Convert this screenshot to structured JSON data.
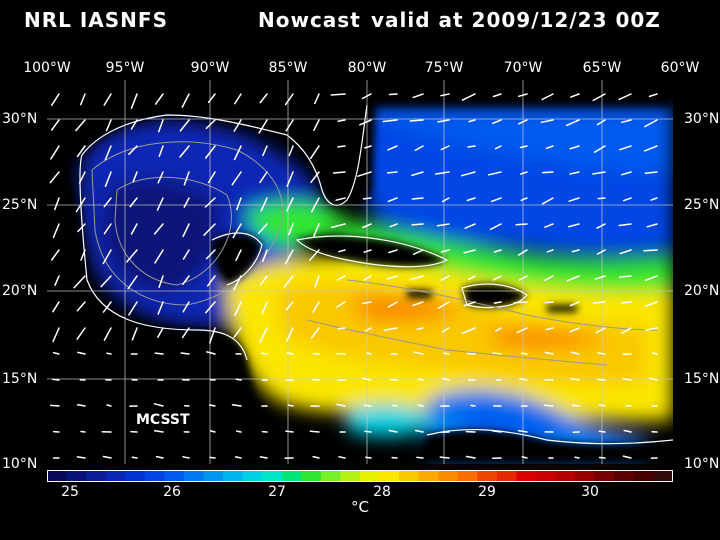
{
  "header": {
    "model": "NRL IASNFS",
    "product": "Nowcast",
    "valid": "valid at 2009/12/23 00Z"
  },
  "lon_labels": [
    "100°W",
    "95°W",
    "90°W",
    "85°W",
    "80°W",
    "75°W",
    "70°W",
    "65°W",
    "60°W"
  ],
  "lat_labels": [
    "30°N",
    "25°N",
    "20°N",
    "15°N",
    "10°N"
  ],
  "overlay_label": "MCSST",
  "colorbar": {
    "ticks": [
      "25",
      "26",
      "27",
      "28",
      "29",
      "30"
    ],
    "unit": "°C",
    "colors": [
      "#0a0a5a",
      "#0a1478",
      "#0a1e96",
      "#0a28b4",
      "#0032d2",
      "#0046e6",
      "#005af0",
      "#0078f0",
      "#0096f0",
      "#00b4f0",
      "#00d2e6",
      "#00e6c8",
      "#00e678",
      "#32e632",
      "#78f028",
      "#b4f014",
      "#e6f000",
      "#fae600",
      "#fac800",
      "#faaa00",
      "#fa8c00",
      "#fa6e00",
      "#f04600",
      "#e62800",
      "#dc0000",
      "#c80000",
      "#b40000",
      "#960000",
      "#780000",
      "#5a0000",
      "#460000",
      "#320a0a"
    ],
    "land": "#000000"
  }
}
